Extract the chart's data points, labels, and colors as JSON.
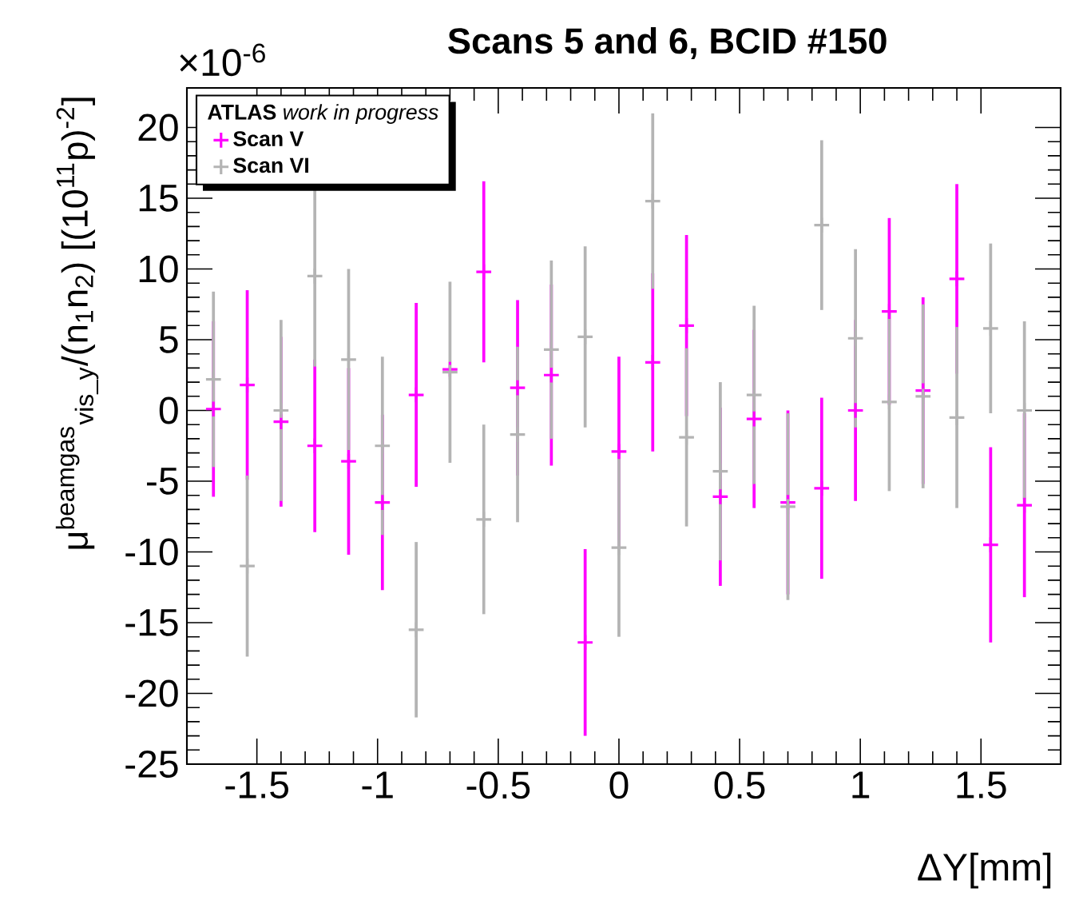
{
  "chart_data": {
    "type": "scatter",
    "title": "Scans 5 and 6, BCID #150",
    "xlabel": "ΔY[mm]",
    "ylabel": "μ$^{beamgas}$$_{vis_y}$/(n$_{1}$n$_{2}$) [(10$^{11}$p)$^{-2}$]",
    "legend_title": "**ATLAS** *work in progress*",
    "annotations": [
      "×10$^{-6}$"
    ],
    "x": [
      -1.68,
      -1.54,
      -1.4,
      -1.26,
      -1.12,
      -0.98,
      -0.84,
      -0.7,
      -0.56,
      -0.42,
      -0.28,
      -0.14,
      0.0,
      0.14,
      0.28,
      0.42,
      0.56,
      0.7,
      0.84,
      0.98,
      1.12,
      1.26,
      1.4,
      1.54,
      1.68
    ],
    "series": [
      {
        "name": "Scan V",
        "color": "#ff00ff",
        "marker": "cross",
        "values": [
          0.1,
          1.8,
          -0.8,
          -2.5,
          -3.6,
          -6.5,
          1.1,
          2.9,
          9.8,
          1.6,
          2.5,
          -16.4,
          -2.9,
          3.4,
          6.0,
          -6.1,
          -0.6,
          -6.5,
          -5.5,
          0.0,
          7.0,
          1.4,
          9.3,
          -9.5,
          -6.7
        ],
        "errors": [
          6.2,
          6.7,
          6.0,
          6.1,
          6.6,
          6.2,
          6.5,
          null,
          6.4,
          6.2,
          6.4,
          6.6,
          6.7,
          6.3,
          6.4,
          6.3,
          6.3,
          6.5,
          6.4,
          6.4,
          6.6,
          6.6,
          6.7,
          6.9,
          6.5
        ]
      },
      {
        "name": "Scan VI",
        "color": "#b4b4b4",
        "marker": "cross",
        "values": [
          2.2,
          -11.0,
          0.0,
          9.5,
          3.6,
          -2.5,
          -15.5,
          2.7,
          -7.7,
          -1.7,
          4.3,
          5.2,
          -9.7,
          14.8,
          -1.9,
          -4.3,
          1.1,
          -6.8,
          13.1,
          5.1,
          0.6,
          1.0,
          -0.5,
          5.8,
          0.0
        ],
        "errors": [
          6.2,
          6.4,
          6.4,
          6.4,
          6.4,
          6.3,
          6.2,
          6.4,
          6.7,
          6.2,
          6.3,
          6.4,
          6.3,
          6.2,
          6.3,
          6.3,
          6.3,
          6.6,
          6.0,
          6.3,
          6.3,
          6.5,
          6.4,
          6.0,
          6.3
        ]
      }
    ],
    "xlim": [
      -1.79,
      1.83
    ],
    "ylim": [
      -25,
      22.8
    ],
    "xticks": [
      -1.5,
      -1,
      -0.5,
      0,
      0.5,
      1,
      1.5
    ],
    "yticks": [
      -25,
      -20,
      -15,
      -10,
      -5,
      0,
      5,
      10,
      15,
      20
    ],
    "legend": "top left",
    "grid": false
  }
}
